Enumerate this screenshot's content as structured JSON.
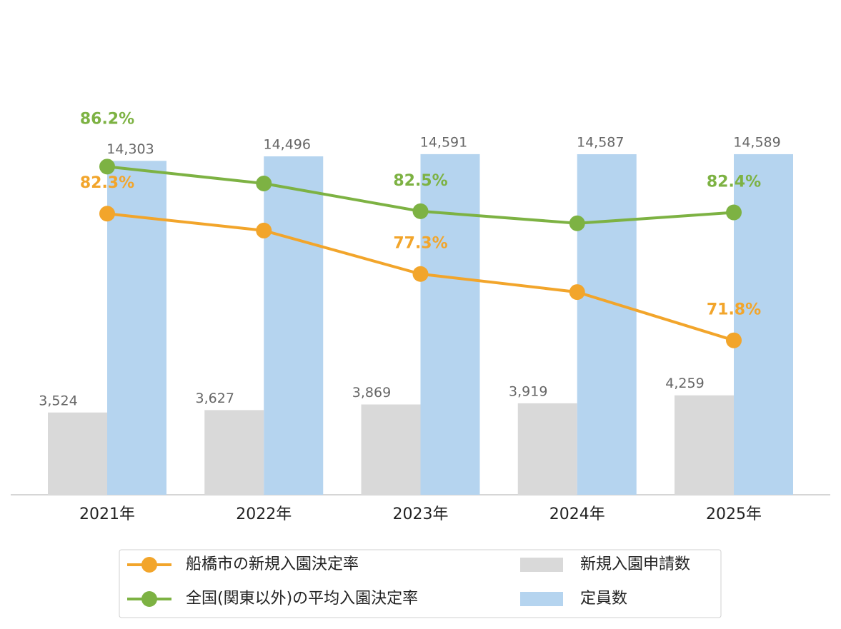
{
  "chart_data": {
    "type": "bar",
    "categories": [
      "2021年",
      "2022年",
      "2023年",
      "2024年",
      "2025年"
    ],
    "ylim": [
      0,
      20000
    ],
    "y2lim": [
      59,
      97.7
    ],
    "series": [
      {
        "name": "船橋市の新規入園決定率",
        "type": "line",
        "axis": "y2",
        "color": "#f2a52b",
        "values": [
          82.3,
          80.9,
          77.3,
          75.8,
          71.8
        ],
        "value_labels": [
          "82.3%",
          null,
          "77.3%",
          null,
          "71.8%"
        ]
      },
      {
        "name": "全国(関東以外)の平均入園決定率",
        "type": "line",
        "axis": "y2",
        "color": "#7db243",
        "values": [
          86.2,
          84.8,
          82.5,
          81.5,
          82.4
        ],
        "value_labels": [
          "86.2%",
          null,
          "82.5%",
          null,
          "82.4%"
        ]
      },
      {
        "name": "新規入園申請数",
        "type": "bar",
        "color": "#d9d9d9",
        "values": [
          3524,
          3627,
          3869,
          3919,
          4259
        ],
        "value_labels": [
          "3,524",
          "3,627",
          "3,869",
          "3,919",
          "4,259"
        ]
      },
      {
        "name": "定員数",
        "type": "bar",
        "color": "#b5d4ef",
        "values": [
          14303,
          14496,
          14591,
          14587,
          14589
        ],
        "value_labels": [
          "14,303",
          "14,496",
          "14,591",
          "14,587",
          "14,589"
        ]
      }
    ]
  }
}
